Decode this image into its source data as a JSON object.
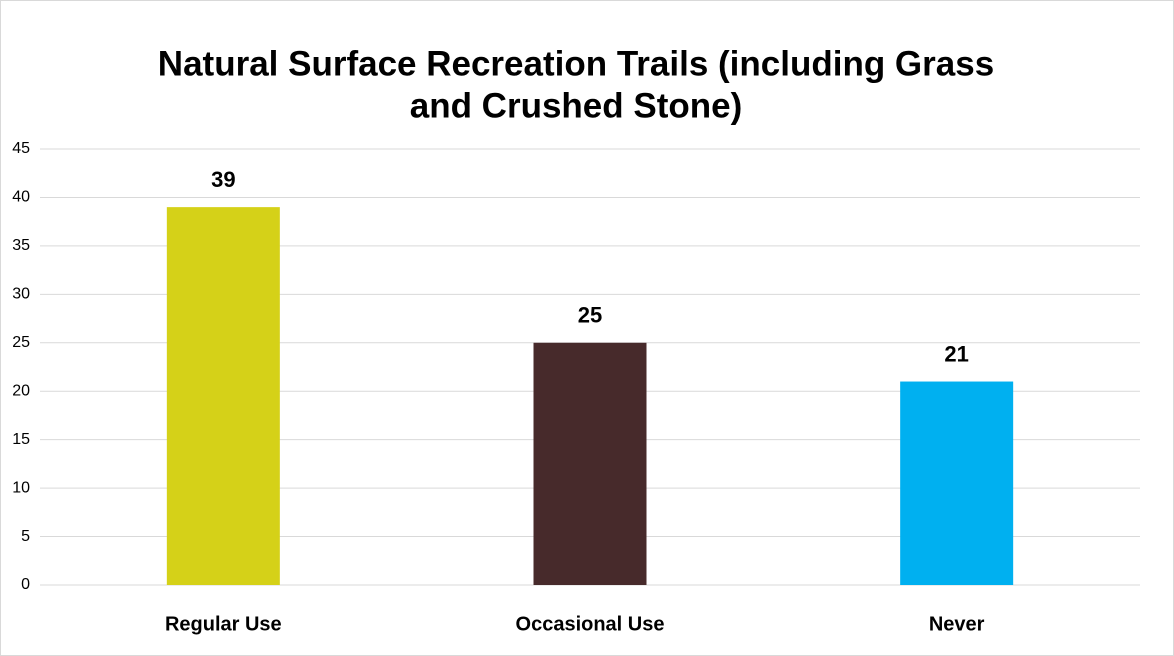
{
  "chart_data": {
    "type": "bar",
    "title": [
      "Natural Surface Recreation Trails (including Grass",
      "and Crushed Stone)"
    ],
    "categories": [
      "Regular Use",
      "Occasional Use",
      "Never"
    ],
    "values": [
      39,
      25,
      21
    ],
    "colors": [
      "#d5d118",
      "#472a2b",
      "#00b0f0"
    ],
    "ylim": [
      0,
      45
    ],
    "yticks": [
      0,
      5,
      10,
      15,
      20,
      25,
      30,
      35,
      40,
      45
    ],
    "grid": true
  }
}
